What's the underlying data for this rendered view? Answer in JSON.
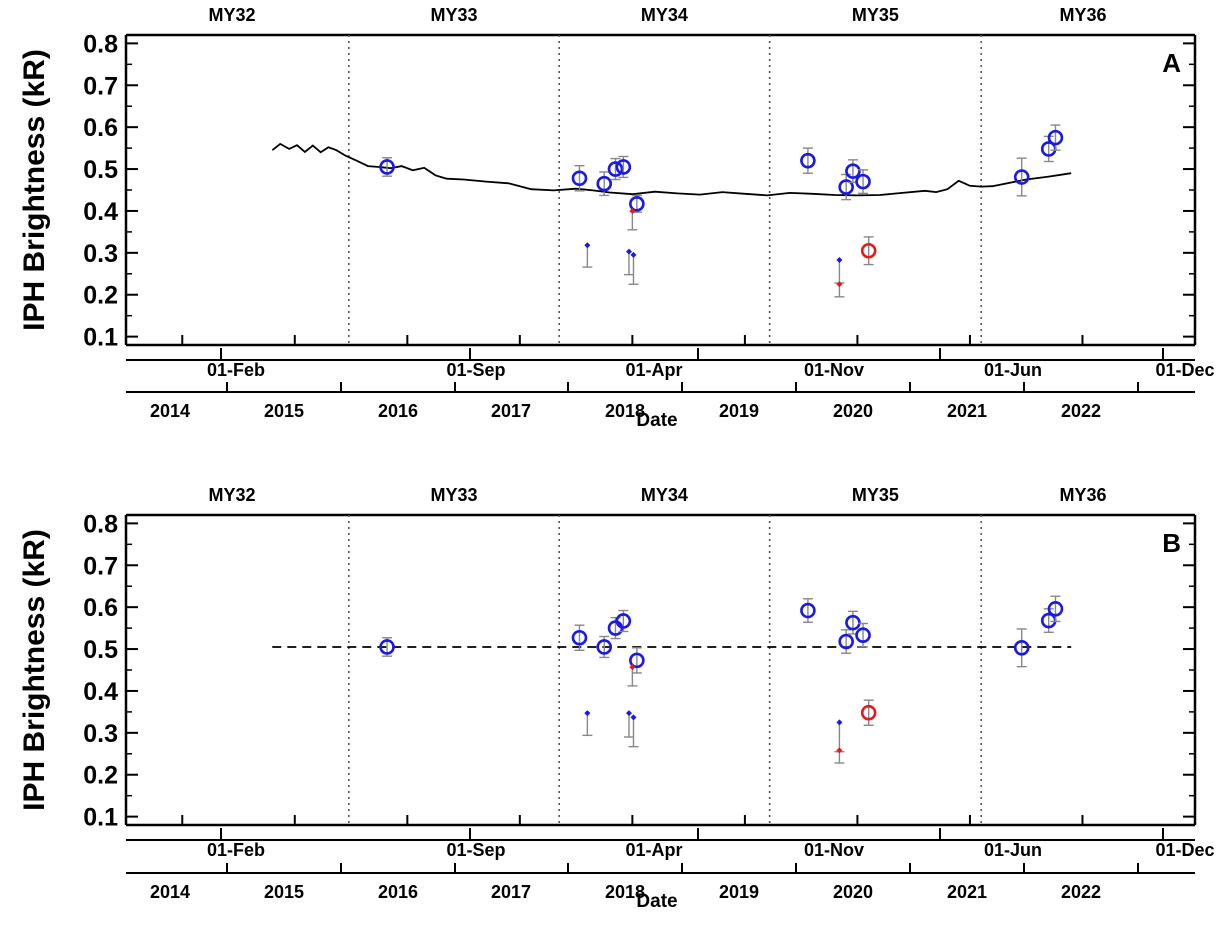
{
  "chart_data": [
    {
      "type": "scatter",
      "panel": "A",
      "ylabel": "IPH Brightness (kR)",
      "xlabel": "Date",
      "ylim": [
        0.08,
        0.82
      ],
      "yticks": [
        "0.1",
        "0.2",
        "0.3",
        "0.4",
        "0.5",
        "0.6",
        "0.7",
        "0.8"
      ],
      "top_axis_ticks": [
        "01-Feb",
        "01-Sep",
        "01-Apr",
        "01-Nov",
        "01-Jun",
        "01-Dec"
      ],
      "year_ticks": [
        "2014",
        "2015",
        "2016",
        "2017",
        "2018",
        "2019",
        "2020",
        "2021",
        "2022"
      ],
      "mars_years": [
        {
          "label": "MY32",
          "start": 2014.0,
          "end": 2015.48
        },
        {
          "label": "MY33",
          "start": 2015.48,
          "end": 2017.35
        },
        {
          "label": "MY34",
          "start": 2017.35,
          "end": 2019.22
        },
        {
          "label": "MY35",
          "start": 2019.22,
          "end": 2021.1
        },
        {
          "label": "MY36",
          "start": 2021.1,
          "end": 2023.0
        }
      ],
      "xlim": [
        2013.5,
        2023.0
      ],
      "model_line": {
        "style": "solid",
        "x": [
          2014.8,
          2014.87,
          2014.95,
          2015.02,
          2015.09,
          2015.16,
          2015.23,
          2015.3,
          2015.37,
          2015.45,
          2015.55,
          2015.65,
          2015.75,
          2015.85,
          2015.95,
          2016.05,
          2016.15,
          2016.25,
          2016.35,
          2016.5,
          2016.7,
          2016.9,
          2017.1,
          2017.3,
          2017.5,
          2017.65,
          2017.8,
          2018.0,
          2018.2,
          2018.4,
          2018.6,
          2018.8,
          2019.0,
          2019.2,
          2019.4,
          2019.6,
          2019.8,
          2020.0,
          2020.2,
          2020.4,
          2020.6,
          2020.7,
          2020.8,
          2020.9,
          2021.0,
          2021.1,
          2021.2,
          2021.35,
          2021.5,
          2021.7,
          2021.9
        ],
        "y": [
          0.545,
          0.56,
          0.548,
          0.557,
          0.541,
          0.556,
          0.54,
          0.552,
          0.545,
          0.532,
          0.52,
          0.507,
          0.505,
          0.502,
          0.507,
          0.497,
          0.503,
          0.485,
          0.477,
          0.475,
          0.47,
          0.466,
          0.452,
          0.449,
          0.453,
          0.449,
          0.444,
          0.44,
          0.446,
          0.442,
          0.439,
          0.445,
          0.441,
          0.437,
          0.443,
          0.441,
          0.438,
          0.437,
          0.438,
          0.443,
          0.448,
          0.445,
          0.452,
          0.472,
          0.46,
          0.458,
          0.459,
          0.467,
          0.475,
          0.482,
          0.49
        ]
      },
      "series": [
        {
          "marker": "open-circle",
          "color": "#1a1ae6",
          "points": [
            {
              "x": 2015.82,
              "y": 0.505,
              "err": 0.022
            },
            {
              "x": 2017.53,
              "y": 0.478,
              "err": 0.03
            },
            {
              "x": 2017.75,
              "y": 0.465,
              "err": 0.028
            },
            {
              "x": 2017.85,
              "y": 0.5,
              "err": 0.025
            },
            {
              "x": 2017.92,
              "y": 0.505,
              "err": 0.025
            },
            {
              "x": 2018.04,
              "y": 0.417,
              "err": 0.02
            },
            {
              "x": 2019.56,
              "y": 0.52,
              "err": 0.03
            },
            {
              "x": 2019.9,
              "y": 0.457,
              "err": 0.03
            },
            {
              "x": 2019.96,
              "y": 0.495,
              "err": 0.027
            },
            {
              "x": 2020.05,
              "y": 0.47,
              "err": 0.028
            },
            {
              "x": 2021.46,
              "y": 0.481,
              "err": 0.045
            },
            {
              "x": 2021.7,
              "y": 0.548,
              "err": 0.03
            },
            {
              "x": 2021.76,
              "y": 0.575,
              "err": 0.03
            }
          ]
        },
        {
          "marker": "open-circle",
          "color": "#e61a1a",
          "points": [
            {
              "x": 2020.1,
              "y": 0.305,
              "err": 0.033
            }
          ]
        },
        {
          "marker": "small-diamond",
          "color": "#1a1ae6",
          "points": [
            {
              "x": 2017.6,
              "y": 0.318,
              "err_low": 0.052
            },
            {
              "x": 2017.97,
              "y": 0.303,
              "err_low": 0.055
            },
            {
              "x": 2018.01,
              "y": 0.295,
              "err_low": 0.07
            },
            {
              "x": 2019.84,
              "y": 0.283,
              "err_low": 0.055
            }
          ]
        },
        {
          "marker": "small-diamond",
          "color": "#e61a1a",
          "points": [
            {
              "x": 2018.0,
              "y": 0.4,
              "err_low": 0.045
            },
            {
              "x": 2019.84,
              "y": 0.225,
              "err_low": 0.03
            }
          ]
        }
      ]
    },
    {
      "type": "scatter",
      "panel": "B",
      "ylabel": "IPH Brightness (kR)",
      "xlabel": "Date",
      "ylim": [
        0.08,
        0.82
      ],
      "yticks": [
        "0.1",
        "0.2",
        "0.3",
        "0.4",
        "0.5",
        "0.6",
        "0.7",
        "0.8"
      ],
      "top_axis_ticks": [
        "01-Feb",
        "01-Sep",
        "01-Apr",
        "01-Nov",
        "01-Jun",
        "01-Dec"
      ],
      "year_ticks": [
        "2014",
        "2015",
        "2016",
        "2017",
        "2018",
        "2019",
        "2020",
        "2021",
        "2022"
      ],
      "mars_years": [
        {
          "label": "MY32",
          "start": 2014.0,
          "end": 2015.48
        },
        {
          "label": "MY33",
          "start": 2015.48,
          "end": 2017.35
        },
        {
          "label": "MY34",
          "start": 2017.35,
          "end": 2019.22
        },
        {
          "label": "MY35",
          "start": 2019.22,
          "end": 2021.1
        },
        {
          "label": "MY36",
          "start": 2021.1,
          "end": 2023.0
        }
      ],
      "xlim": [
        2013.5,
        2023.0
      ],
      "model_line": {
        "style": "dashed",
        "x": [
          2014.8,
          2021.9
        ],
        "y": [
          0.505,
          0.505
        ]
      },
      "series": [
        {
          "marker": "open-circle",
          "color": "#1a1ae6",
          "points": [
            {
              "x": 2015.82,
              "y": 0.505,
              "err": 0.022
            },
            {
              "x": 2017.53,
              "y": 0.527,
              "err": 0.03
            },
            {
              "x": 2017.75,
              "y": 0.505,
              "err": 0.025
            },
            {
              "x": 2017.85,
              "y": 0.55,
              "err": 0.025
            },
            {
              "x": 2017.92,
              "y": 0.567,
              "err": 0.025
            },
            {
              "x": 2018.04,
              "y": 0.473,
              "err": 0.03
            },
            {
              "x": 2019.56,
              "y": 0.592,
              "err": 0.028
            },
            {
              "x": 2019.9,
              "y": 0.518,
              "err": 0.028
            },
            {
              "x": 2019.96,
              "y": 0.563,
              "err": 0.027
            },
            {
              "x": 2020.05,
              "y": 0.533,
              "err": 0.028
            },
            {
              "x": 2021.46,
              "y": 0.503,
              "err": 0.045
            },
            {
              "x": 2021.7,
              "y": 0.568,
              "err": 0.028
            },
            {
              "x": 2021.76,
              "y": 0.596,
              "err": 0.03
            }
          ]
        },
        {
          "marker": "open-circle",
          "color": "#e61a1a",
          "points": [
            {
              "x": 2020.1,
              "y": 0.348,
              "err": 0.03
            }
          ]
        },
        {
          "marker": "small-diamond",
          "color": "#1a1ae6",
          "points": [
            {
              "x": 2017.6,
              "y": 0.347,
              "err_low": 0.053
            },
            {
              "x": 2017.97,
              "y": 0.347,
              "err_low": 0.057
            },
            {
              "x": 2018.01,
              "y": 0.337,
              "err_low": 0.07
            },
            {
              "x": 2019.84,
              "y": 0.325,
              "err_low": 0.07
            }
          ]
        },
        {
          "marker": "small-diamond",
          "color": "#e61a1a",
          "points": [
            {
              "x": 2018.0,
              "y": 0.457,
              "err_low": 0.045
            },
            {
              "x": 2019.84,
              "y": 0.258,
              "err_low": 0.03
            }
          ]
        }
      ]
    }
  ]
}
